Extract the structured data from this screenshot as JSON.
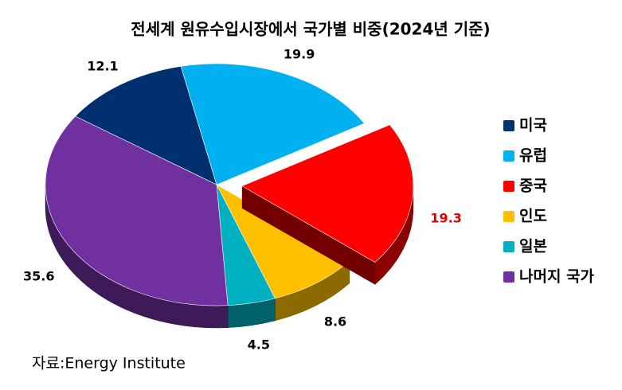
{
  "chart_data": {
    "type": "pie3d",
    "title": "전세계 원유수입시장에서 국가별 비중(2024년 기준)",
    "categories": [
      "미국",
      "유럽",
      "중국",
      "인도",
      "일본",
      "나머지 국가"
    ],
    "values": [
      12.1,
      19.9,
      19.3,
      8.6,
      4.5,
      35.6
    ],
    "colors": [
      "#003070",
      "#00b0f0",
      "#ff0000",
      "#ffc000",
      "#00b0c0",
      "#7030a0"
    ],
    "explode": [
      false,
      false,
      true,
      false,
      false,
      false
    ],
    "label_colors": [
      "#000000",
      "#000000",
      "#e00000",
      "#000000",
      "#000000",
      "#000000"
    ],
    "legend": "right",
    "source": "자료:Energy Institute"
  }
}
